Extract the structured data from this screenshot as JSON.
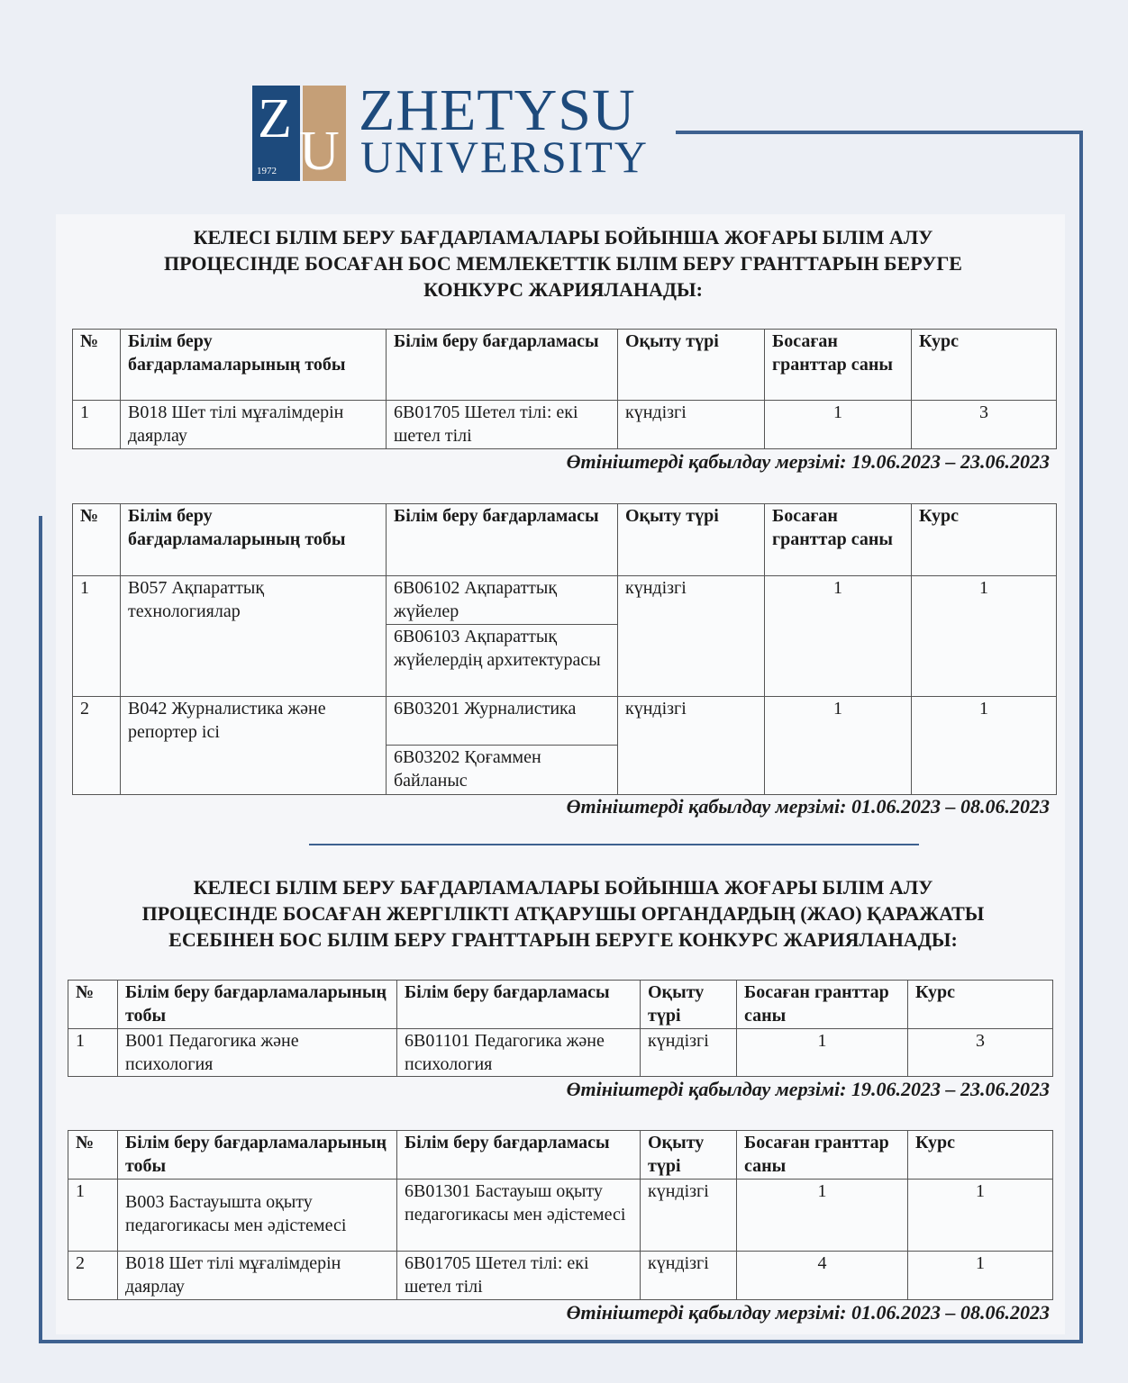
{
  "logo": {
    "letters_left": "Z",
    "letters_right": "U",
    "year": "1972",
    "name_line1": "ZHETYSU",
    "name_line2": "UNIVERSITY",
    "brand_blue": "#1d4a7c",
    "brand_tan": "#c59f77"
  },
  "sections": [
    {
      "heading": [
        "КЕЛЕСІ БІЛІМ БЕРУ БАҒДАРЛАМАЛАРЫ БОЙЫНША ЖОҒАРЫ БІЛІМ АЛУ",
        "ПРОЦЕСІНДЕ БОСАҒАН БОС МЕМЛЕКЕТТІК БІЛІМ БЕРУ ГРАНТТАРЫН БЕРУГЕ",
        "КОНКУРС ЖАРИЯЛАНАДЫ:"
      ],
      "tables": [
        {
          "headers": [
            "№",
            "Білім беру бағдарламаларының тобы",
            "Білім беру бағдарламасы",
            "Оқыту түрі",
            "Босаған гранттар саны",
            "Курс"
          ],
          "rows": [
            {
              "no": "1",
              "group": "В018 Шет тілі мұғалімдерін даярлау",
              "programs": [
                "6В01705  Шетел тілі: екі шетел тілі"
              ],
              "form": "күндізгі",
              "grants": "1",
              "course": "3"
            }
          ],
          "deadline": "Өтініштерді қабылдау мерзімі: 19.06.2023 – 23.06.2023"
        },
        {
          "headers": [
            "№",
            "Білім беру бағдарламаларының тобы",
            "Білім беру бағдарламасы",
            "Оқыту түрі",
            "Босаған гранттар саны",
            "Курс"
          ],
          "rows": [
            {
              "no": "1",
              "group": "В057 Ақпараттық технологиялар",
              "programs": [
                "6В06102 Ақпараттық жүйелер",
                "6В06103 Ақпараттық жүйелердің архитектурасы"
              ],
              "form": "күндізгі",
              "grants": "1",
              "course": "1"
            },
            {
              "no": "2",
              "group": "В042 Журналистика және репортер ісі",
              "programs": [
                "6В03201 Журналистика",
                "6В03202 Қоғаммен байланыс"
              ],
              "form": "күндізгі",
              "grants": "1",
              "course": "1"
            }
          ],
          "deadline": "Өтініштерді қабылдау мерзімі: 01.06.2023 – 08.06.2023"
        }
      ]
    },
    {
      "heading": [
        "КЕЛЕСІ БІЛІМ БЕРУ БАҒДАРЛАМАЛАРЫ БОЙЫНША ЖОҒАРЫ БІЛІМ АЛУ",
        "ПРОЦЕСІНДЕ БОСАҒАН ЖЕРГІЛІКТІ АТҚАРУШЫ ОРГАНДАРДЫҢ (ЖАО) ҚАРАЖАТЫ",
        "ЕСЕБІНЕН БОС БІЛІМ БЕРУ ГРАНТТАРЫН БЕРУГЕ КОНКУРС ЖАРИЯЛАНАДЫ:"
      ],
      "tables": [
        {
          "headers": [
            "№",
            "Білім беру бағдарламаларының тобы",
            "Білім беру бағдарламасы",
            "Оқыту түрі",
            "Босаған гранттар саны",
            "Курс"
          ],
          "rows": [
            {
              "no": "1",
              "group": "В001 Педагогика және психология",
              "programs": [
                "6В01101  Педагогика және психология"
              ],
              "form": "күндізгі",
              "grants": "1",
              "course": "3"
            }
          ],
          "deadline": "Өтініштерді қабылдау мерзімі: 19.06.2023 – 23.06.2023"
        },
        {
          "headers": [
            "№",
            "Білім беру бағдарламаларының тобы",
            "Білім беру бағдарламасы",
            "Оқыту түрі",
            "Босаған гранттар саны",
            "Курс"
          ],
          "rows": [
            {
              "no": "1",
              "group": "В003 Бастауышта оқыту педагогикасы мен әдістемесі",
              "programs": [
                "6В01301 Бастауыш оқыту педагогикасы мен әдістемесі"
              ],
              "form": "күндізгі",
              "grants": "1",
              "course": "1"
            },
            {
              "no": "2",
              "group": "В018 Шет тілі мұғалімдерін даярлау",
              "programs": [
                "6В01705  Шетел тілі: екі шетел тілі"
              ],
              "form": "күндізгі",
              "grants": "4",
              "course": "1"
            }
          ],
          "deadline": "Өтініштерді қабылдау мерзімі: 01.06.2023 – 08.06.2023"
        }
      ]
    }
  ]
}
